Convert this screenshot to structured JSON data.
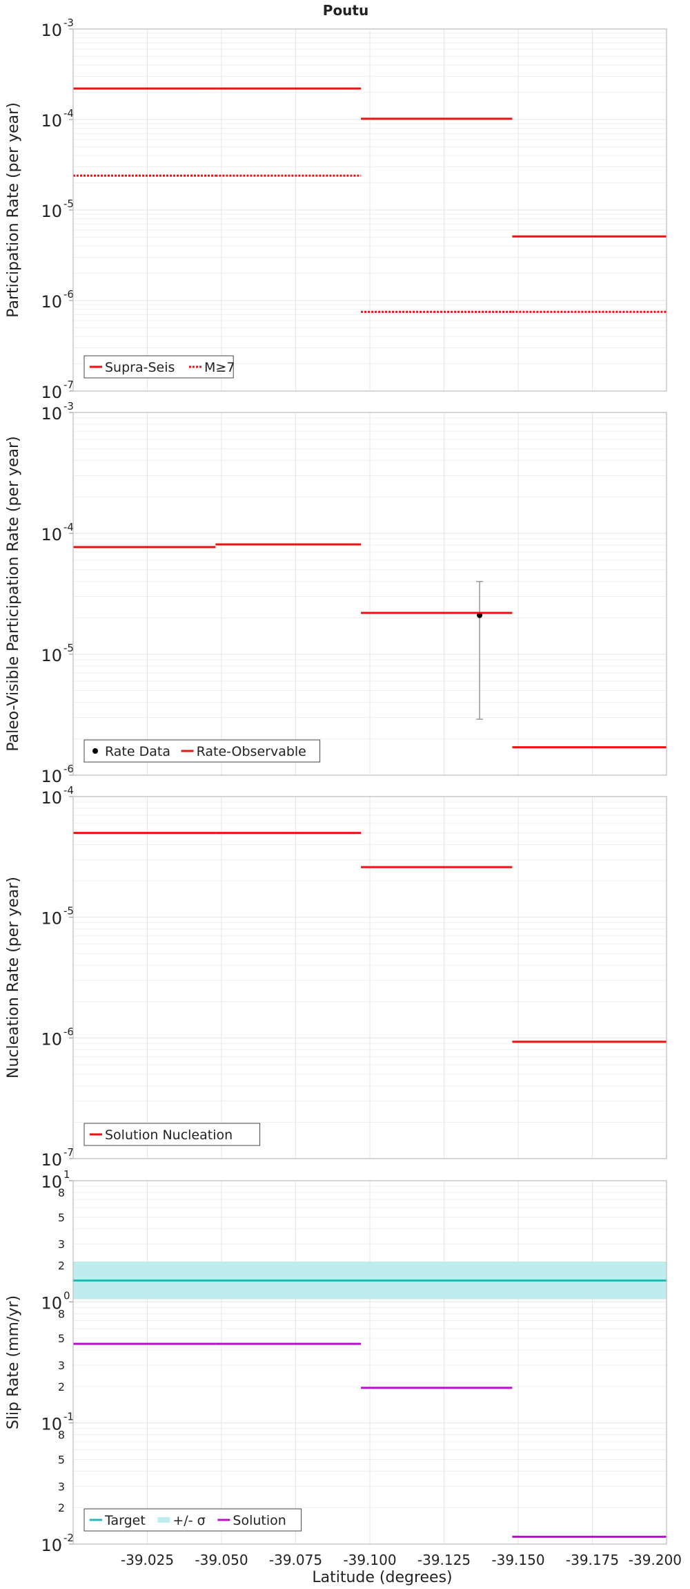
{
  "title": "Poutu",
  "xlabel": "Latitude (degrees)",
  "x_ticks": [
    "-39.025",
    "-39.050",
    "-39.075",
    "-39.100",
    "-39.125",
    "-39.150",
    "-39.175",
    "-39.200"
  ],
  "colors": {
    "red": "#ee1111",
    "teal": "#2bb5b5",
    "teal_band": "#bfecec",
    "magenta": "#b512c8",
    "errorbar": "#999999",
    "point": "#000000",
    "grid": "#e6e6e6",
    "frame": "#bbbbbb"
  },
  "chart_data": [
    {
      "type": "line",
      "title": "Poutu",
      "ylabel": "Participation Rate (per year)",
      "xlabel": "Latitude (degrees)",
      "yscale": "log",
      "ylim": [
        1e-07,
        0.001
      ],
      "xlim": [
        -39.0,
        -39.2
      ],
      "xaxis_reversed": true,
      "legend_position": "bottom-left",
      "series": [
        {
          "name": "Supra-Seis",
          "style": "solid",
          "color": "#ee1111",
          "segments": [
            {
              "x": [
                -39.0,
                -39.048
              ],
              "y": 0.00022
            },
            {
              "x": [
                -39.048,
                -39.097
              ],
              "y": 0.00022
            },
            {
              "x": [
                -39.097,
                -39.148
              ],
              "y": 0.000102
            },
            {
              "x": [
                -39.148,
                -39.2
              ],
              "y": 5.1e-06
            }
          ]
        },
        {
          "name": "M≥7",
          "style": "dotted",
          "color": "#ee1111",
          "segments": [
            {
              "x": [
                -39.0,
                -39.048
              ],
              "y": 2.4e-05
            },
            {
              "x": [
                -39.048,
                -39.097
              ],
              "y": 2.4e-05
            },
            {
              "x": [
                -39.097,
                -39.148
              ],
              "y": 7.5e-07
            },
            {
              "x": [
                -39.148,
                -39.2
              ],
              "y": 7.5e-07
            }
          ]
        }
      ]
    },
    {
      "type": "line",
      "ylabel": "Paleo-Visible Participation Rate (per year)",
      "yscale": "log",
      "ylim": [
        1e-06,
        0.001
      ],
      "xlim": [
        -39.0,
        -39.2
      ],
      "xaxis_reversed": true,
      "legend_position": "bottom-left",
      "series": [
        {
          "name": "Rate Data",
          "style": "point",
          "color": "#000000",
          "points": [
            {
              "x": -39.137,
              "y": 2.1e-05,
              "ylow": 2.9e-06,
              "yhigh": 4e-05
            }
          ]
        },
        {
          "name": "Rate-Observable",
          "style": "solid",
          "color": "#ee1111",
          "segments": [
            {
              "x": [
                -39.0,
                -39.048
              ],
              "y": 7.7e-05
            },
            {
              "x": [
                -39.048,
                -39.097
              ],
              "y": 8.1e-05
            },
            {
              "x": [
                -39.097,
                -39.148
              ],
              "y": 2.2e-05
            },
            {
              "x": [
                -39.148,
                -39.2
              ],
              "y": 1.7e-06
            }
          ]
        }
      ]
    },
    {
      "type": "line",
      "ylabel": "Nucleation Rate (per year)",
      "yscale": "log",
      "ylim": [
        1e-07,
        0.0001
      ],
      "xlim": [
        -39.0,
        -39.2
      ],
      "xaxis_reversed": true,
      "legend_position": "bottom-left",
      "series": [
        {
          "name": "Solution Nucleation",
          "style": "solid",
          "color": "#ee1111",
          "segments": [
            {
              "x": [
                -39.0,
                -39.048
              ],
              "y": 5e-05
            },
            {
              "x": [
                -39.048,
                -39.097
              ],
              "y": 5e-05
            },
            {
              "x": [
                -39.097,
                -39.148
              ],
              "y": 2.6e-05
            },
            {
              "x": [
                -39.148,
                -39.2
              ],
              "y": 9.3e-07
            }
          ]
        }
      ]
    },
    {
      "type": "line",
      "ylabel": "Slip Rate (mm/yr)",
      "xlabel": "Latitude (degrees)",
      "yscale": "log",
      "ylim": [
        0.01,
        10
      ],
      "xlim": [
        -39.0,
        -39.2
      ],
      "xaxis_reversed": true,
      "legend_position": "bottom-left",
      "series": [
        {
          "name": "Target",
          "style": "solid",
          "color": "#2bb5b5",
          "segments": [
            {
              "x": [
                -39.0,
                -39.2
              ],
              "y": 1.5
            }
          ]
        },
        {
          "name": "+/- σ",
          "style": "band",
          "color": "#bfecec",
          "band": {
            "x": [
              -39.0,
              -39.2
            ],
            "ylow": 1.05,
            "yhigh": 2.15
          }
        },
        {
          "name": "Solution",
          "style": "solid",
          "color": "#b512c8",
          "segments": [
            {
              "x": [
                -39.0,
                -39.048
              ],
              "y": 0.45
            },
            {
              "x": [
                -39.048,
                -39.097
              ],
              "y": 0.45
            },
            {
              "x": [
                -39.097,
                -39.148
              ],
              "y": 0.195
            },
            {
              "x": [
                -39.148,
                -39.2
              ],
              "y": 0.0115
            }
          ]
        }
      ]
    }
  ]
}
